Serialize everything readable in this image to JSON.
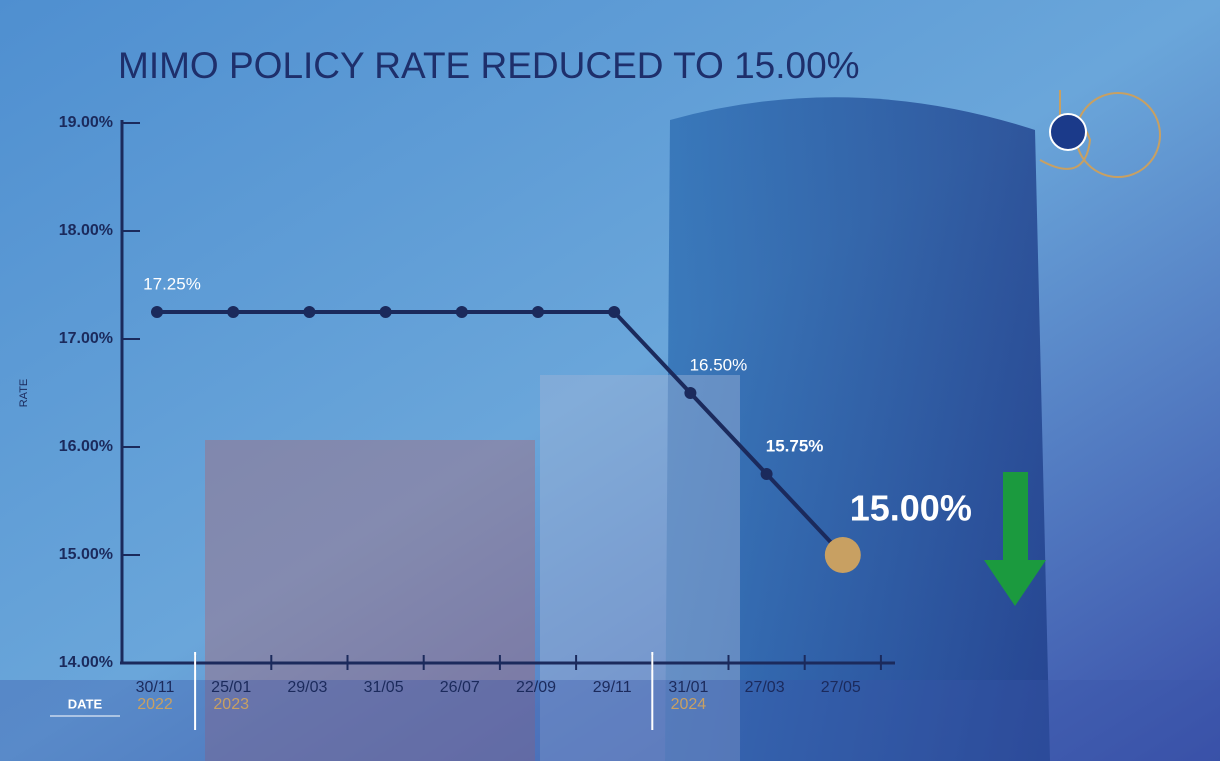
{
  "chart_data": {
    "type": "line",
    "title": "MIMO POLICY RATE REDUCED TO 15.00%",
    "y_label": "RATE",
    "x_label": "DATE",
    "categories": [
      "30/11",
      "25/01",
      "29/03",
      "31/05",
      "26/07",
      "22/09",
      "29/11",
      "31/01",
      "27/03",
      "27/05"
    ],
    "years": [
      "2022",
      "2023",
      null,
      null,
      null,
      null,
      null,
      "2024",
      null,
      null
    ],
    "values": [
      17.25,
      17.25,
      17.25,
      17.25,
      17.25,
      17.25,
      17.25,
      16.5,
      15.75,
      15.0
    ],
    "value_labels": [
      "17.25%",
      null,
      null,
      null,
      null,
      null,
      null,
      "16.50%",
      "15.75%",
      "15.00%"
    ],
    "color": "#1b2a5c",
    "highlight_color": "#c8a062",
    "ylim": [
      14,
      19
    ],
    "yticks": [
      {
        "value": 14,
        "label": "14.00%"
      },
      {
        "value": 15,
        "label": "15.00%"
      },
      {
        "value": 16,
        "label": "16.00%"
      },
      {
        "value": 17,
        "label": "17.00%"
      },
      {
        "value": 18,
        "label": "18.00%"
      },
      {
        "value": 19,
        "label": "19.00%"
      }
    ]
  }
}
